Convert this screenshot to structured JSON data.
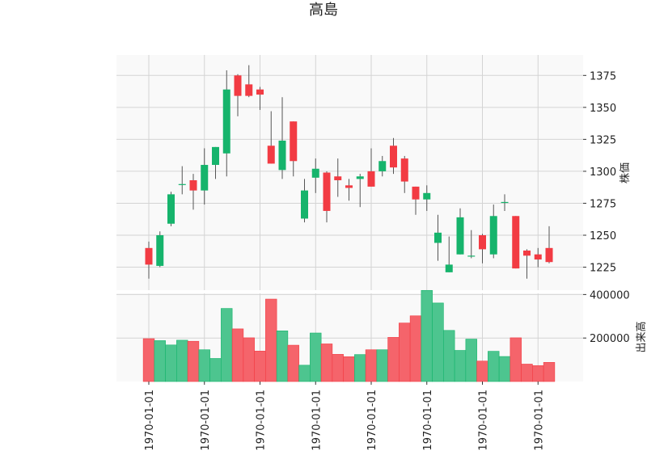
{
  "chart_data": {
    "type": "candlestick",
    "title": "高島",
    "price_axis": {
      "label": "株価",
      "ticks": [
        1225,
        1250,
        1275,
        1300,
        1325,
        1350,
        1375
      ],
      "ylim": [
        1207,
        1391
      ]
    },
    "volume_axis": {
      "label": "出来高",
      "ticks": [
        200000,
        400000
      ],
      "ylim": [
        0,
        420000
      ]
    },
    "x_tick_labels": [
      "1970-01-01",
      "1970-01-01",
      "1970-01-01",
      "1970-01-01",
      "1970-01-01",
      "1970-01-01",
      "1970-01-01",
      "1970-01-01"
    ],
    "x_tick_indices": [
      0,
      5,
      10,
      15,
      20,
      25,
      30,
      35
    ],
    "grid": true,
    "colors": {
      "up": "#16b46c",
      "down": "#f23b43",
      "up_volume": "#4dc58f",
      "down_volume": "#f5646b",
      "background": "#f9f9f9",
      "grid": "#d4d4d4"
    },
    "candles": [
      {
        "o": 1240,
        "h": 1245,
        "l": 1216,
        "c": 1227
      },
      {
        "o": 1226,
        "h": 1253,
        "l": 1225,
        "c": 1250
      },
      {
        "o": 1259,
        "h": 1284,
        "l": 1257,
        "c": 1282
      },
      {
        "o": 1290,
        "h": 1304,
        "l": 1282,
        "c": 1290
      },
      {
        "o": 1293,
        "h": 1298,
        "l": 1270,
        "c": 1285
      },
      {
        "o": 1285,
        "h": 1318,
        "l": 1274,
        "c": 1305
      },
      {
        "o": 1305,
        "h": 1319,
        "l": 1294,
        "c": 1319
      },
      {
        "o": 1314,
        "h": 1379,
        "l": 1296,
        "c": 1364
      },
      {
        "o": 1375,
        "h": 1376,
        "l": 1343,
        "c": 1359
      },
      {
        "o": 1368,
        "h": 1383,
        "l": 1358,
        "c": 1359
      },
      {
        "o": 1364,
        "h": 1366,
        "l": 1348,
        "c": 1360
      },
      {
        "o": 1320,
        "h": 1347,
        "l": 1306,
        "c": 1306
      },
      {
        "o": 1301,
        "h": 1358,
        "l": 1294,
        "c": 1324
      },
      {
        "o": 1339,
        "h": 1339,
        "l": 1296,
        "c": 1308
      },
      {
        "o": 1263,
        "h": 1294,
        "l": 1260,
        "c": 1285
      },
      {
        "o": 1295,
        "h": 1310,
        "l": 1283,
        "c": 1302
      },
      {
        "o": 1299,
        "h": 1300,
        "l": 1260,
        "c": 1269
      },
      {
        "o": 1296,
        "h": 1310,
        "l": 1280,
        "c": 1293
      },
      {
        "o": 1289,
        "h": 1294,
        "l": 1277,
        "c": 1287
      },
      {
        "o": 1294,
        "h": 1298,
        "l": 1272,
        "c": 1296
      },
      {
        "o": 1300,
        "h": 1318,
        "l": 1288,
        "c": 1288
      },
      {
        "o": 1300,
        "h": 1312,
        "l": 1296,
        "c": 1308
      },
      {
        "o": 1320,
        "h": 1326,
        "l": 1298,
        "c": 1303
      },
      {
        "o": 1310,
        "h": 1312,
        "l": 1283,
        "c": 1292
      },
      {
        "o": 1288,
        "h": 1288,
        "l": 1266,
        "c": 1278
      },
      {
        "o": 1278,
        "h": 1289,
        "l": 1269,
        "c": 1283
      },
      {
        "o": 1244,
        "h": 1266,
        "l": 1230,
        "c": 1252
      },
      {
        "o": 1221,
        "h": 1249,
        "l": 1221,
        "c": 1227
      },
      {
        "o": 1235,
        "h": 1271,
        "l": 1235,
        "c": 1264
      },
      {
        "o": 1234,
        "h": 1254,
        "l": 1232,
        "c": 1234
      },
      {
        "o": 1250,
        "h": 1251,
        "l": 1228,
        "c": 1239
      },
      {
        "o": 1235,
        "h": 1274,
        "l": 1232,
        "c": 1265
      },
      {
        "o": 1276,
        "h": 1282,
        "l": 1269,
        "c": 1276
      },
      {
        "o": 1265,
        "h": 1265,
        "l": 1224,
        "c": 1224
      },
      {
        "o": 1238,
        "h": 1239,
        "l": 1216,
        "c": 1234
      },
      {
        "o": 1235,
        "h": 1240,
        "l": 1225,
        "c": 1231
      },
      {
        "o": 1240,
        "h": 1257,
        "l": 1228,
        "c": 1229
      }
    ],
    "volumes": [
      197000,
      188000,
      168000,
      190000,
      185000,
      146000,
      106000,
      336000,
      242000,
      201000,
      140000,
      379000,
      233000,
      167000,
      75000,
      223000,
      173000,
      125000,
      114000,
      124000,
      146000,
      146000,
      203000,
      269000,
      302000,
      419000,
      361000,
      235000,
      143000,
      195000,
      94000,
      139000,
      115000,
      201000,
      80000,
      73000,
      88000
    ]
  }
}
